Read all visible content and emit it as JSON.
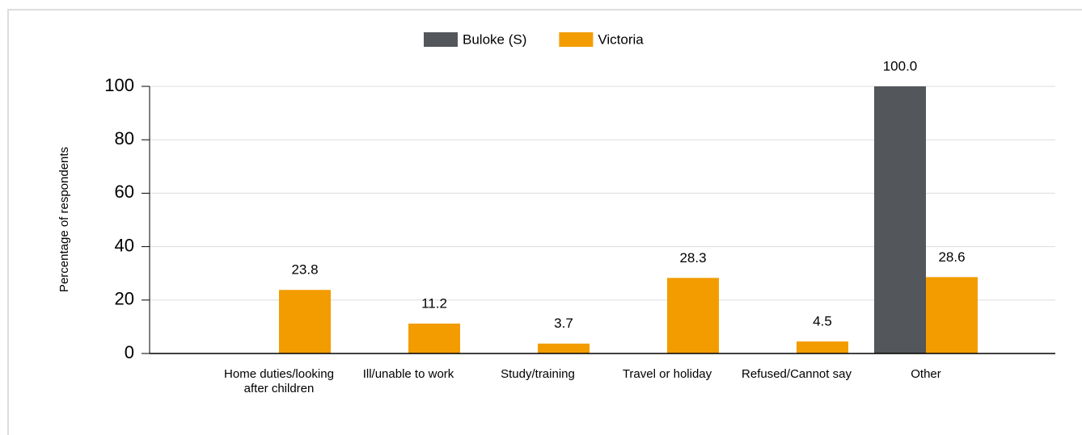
{
  "chart_data": {
    "type": "bar",
    "y_axis_label": "Percentage of respondents",
    "categories": [
      "Home duties/looking after children",
      "Ill/unable to work",
      "Study/training",
      "Travel or holiday",
      "Refused/Cannot say",
      "Other"
    ],
    "series": [
      {
        "name": "Buloke (S)",
        "color": "#53565a",
        "values": [
          null,
          null,
          null,
          null,
          null,
          100
        ],
        "value_labels": [
          null,
          null,
          null,
          null,
          null,
          "100.0"
        ]
      },
      {
        "name": "Victoria",
        "color": "#f39c00",
        "values": [
          23.8,
          11.2,
          3.7,
          28.3,
          4.5,
          28.6
        ]
      }
    ],
    "ylim": [
      0,
      100
    ],
    "yticks": [
      0,
      20,
      40,
      60,
      80,
      100
    ],
    "grid": true,
    "legend": "top"
  }
}
